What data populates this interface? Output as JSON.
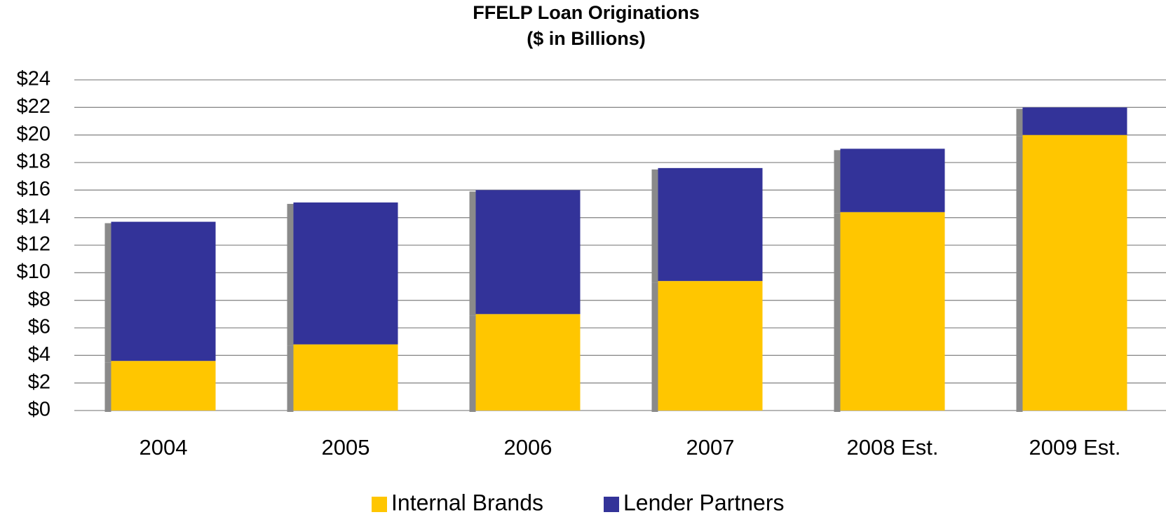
{
  "chart_data": {
    "type": "stacked_bar",
    "title": "FFELP Loan Originations",
    "subtitle": "($ in Billions)",
    "categories": [
      "2004",
      "2005",
      "2006",
      "2007",
      "2008 Est.",
      "2009 Est."
    ],
    "series": [
      {
        "name": "Internal Brands",
        "color": "#ffc600",
        "values": [
          3.6,
          4.8,
          7.0,
          9.4,
          14.4,
          20.0
        ]
      },
      {
        "name": "Lender Partners",
        "color": "#333399",
        "values": [
          10.1,
          10.3,
          9.0,
          8.2,
          4.6,
          2.0
        ]
      }
    ],
    "ylim": [
      0,
      24
    ],
    "yticks": [
      {
        "value": 0,
        "label": "$0"
      },
      {
        "value": 2,
        "label": "$2"
      },
      {
        "value": 4,
        "label": "$4"
      },
      {
        "value": 6,
        "label": "$6"
      },
      {
        "value": 8,
        "label": "$8"
      },
      {
        "value": 10,
        "label": "$10"
      },
      {
        "value": 12,
        "label": "$12"
      },
      {
        "value": 14,
        "label": "$14"
      },
      {
        "value": 16,
        "label": "$16"
      },
      {
        "value": 18,
        "label": "$18"
      },
      {
        "value": 20,
        "label": "$20"
      },
      {
        "value": 22,
        "label": "$22"
      },
      {
        "value": 24,
        "label": "$24"
      }
    ],
    "grid": true,
    "legend": "bottom"
  }
}
